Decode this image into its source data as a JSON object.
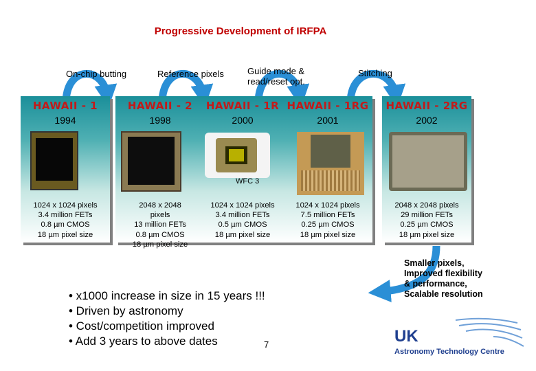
{
  "title": "Progressive Development of IRFPA",
  "steps": [
    {
      "label": "On-chip butting"
    },
    {
      "label": "Reference pixels"
    },
    {
      "label": "Guide mode &",
      "label2": "read/reset opt."
    },
    {
      "label": "Stitching"
    }
  ],
  "cards": [
    {
      "name": "HAWAII - 1",
      "year": "1994",
      "specs": [
        "1024 x 1024 pixels",
        "3.4 million FETs",
        "0.8 µm CMOS",
        "18 µm pixel size"
      ]
    },
    {
      "name": "HAWAII - 2",
      "year": "1998",
      "specs": [
        "2048 x 2048",
        "pixels",
        "13 million FETs",
        "0.8 µm CMOS",
        "18 µm pixel size"
      ]
    },
    {
      "name": "HAWAII - 1R",
      "year": "2000",
      "note": "WFC 3",
      "specs": [
        "1024 x 1024 pixels",
        "3.4 million FETs",
        "0.5 µm CMOS",
        "18 µm pixel size"
      ]
    },
    {
      "name": "HAWAII - 1RG",
      "year": "2001",
      "specs": [
        "1024 x 1024 pixels",
        "7.5 million FETs",
        "0.25 µm CMOS",
        "18 µm pixel size"
      ]
    },
    {
      "name": "HAWAII - 2RG",
      "year": "2002",
      "specs": [
        "2048 x 2048 pixels",
        "29 million FETs",
        "0.25 µm CMOS",
        "18 µm pixel size"
      ]
    }
  ],
  "bullets": [
    "• x1000 increase in size in 15 years !!!",
    "• Driven by astronomy",
    "• Cost/competition improved",
    "• Add 3 years to above dates"
  ],
  "page_number": "7",
  "summary": [
    "Smaller pixels,",
    "Improved flexibility",
    "& performance,",
    "Scalable resolution"
  ],
  "logo": {
    "line1": "UK",
    "line2": "Astronomy Technology Centre"
  },
  "colors": {
    "title": "#c00000",
    "chip_name": "#c21a1a",
    "arrow": "#2a8fd6",
    "card_top": "#1b8f9a",
    "logo_blue": "#1f3f8f"
  }
}
